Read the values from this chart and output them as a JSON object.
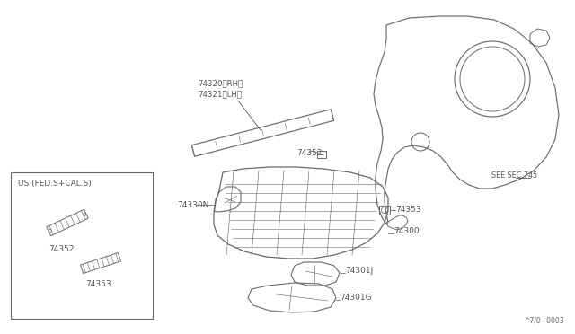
{
  "background_color": "#ffffff",
  "line_color": "#6a6a6a",
  "text_color": "#555555",
  "fig_width": 6.4,
  "fig_height": 3.72,
  "dpi": 100,
  "labels": {
    "74320": "74320〈RH〉",
    "74321": "74321〈LH〉",
    "74352": "74352",
    "74353": "74353",
    "74330N": "74330N",
    "74300": "74300",
    "74301J": "74301J",
    "74301G": "74301G",
    "see_sec": "SEE SEC.745",
    "us_label": "US (FED.S+CAL.S)",
    "footer": "^7/0−0003"
  }
}
